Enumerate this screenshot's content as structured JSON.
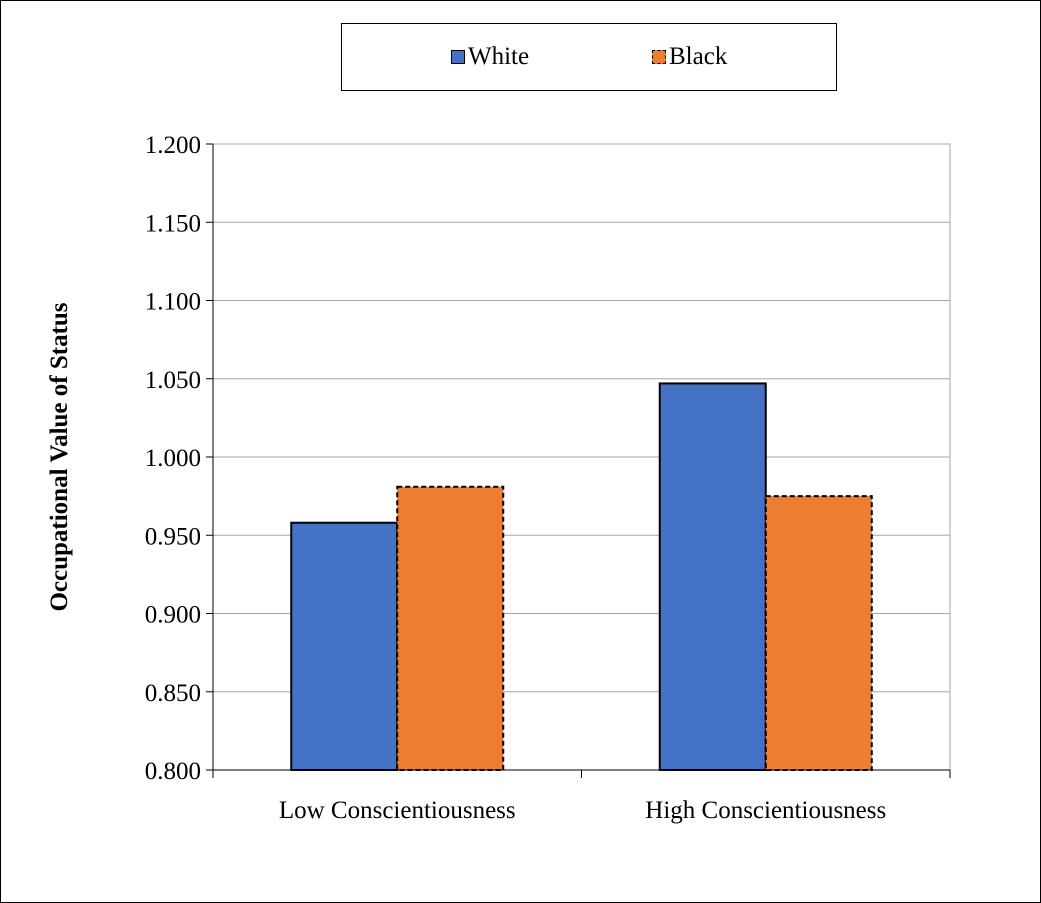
{
  "chart_data": {
    "type": "bar",
    "title": "",
    "xlabel": "",
    "ylabel": "Occupational Value of Status",
    "categories": [
      "Low Conscientiousness",
      "High Conscientiousness"
    ],
    "series": [
      {
        "name": "White",
        "values": [
          0.958,
          1.047
        ],
        "color": "#4472c4",
        "border": "solid"
      },
      {
        "name": "Black",
        "values": [
          0.981,
          0.975
        ],
        "color": "#ed7d31",
        "border": "dashed"
      }
    ],
    "ylim": [
      0.8,
      1.2
    ],
    "yticks": [
      "0.800",
      "0.850",
      "0.900",
      "0.950",
      "1.000",
      "1.050",
      "1.100",
      "1.150",
      "1.200"
    ],
    "grid": true,
    "legend_position": "top"
  }
}
